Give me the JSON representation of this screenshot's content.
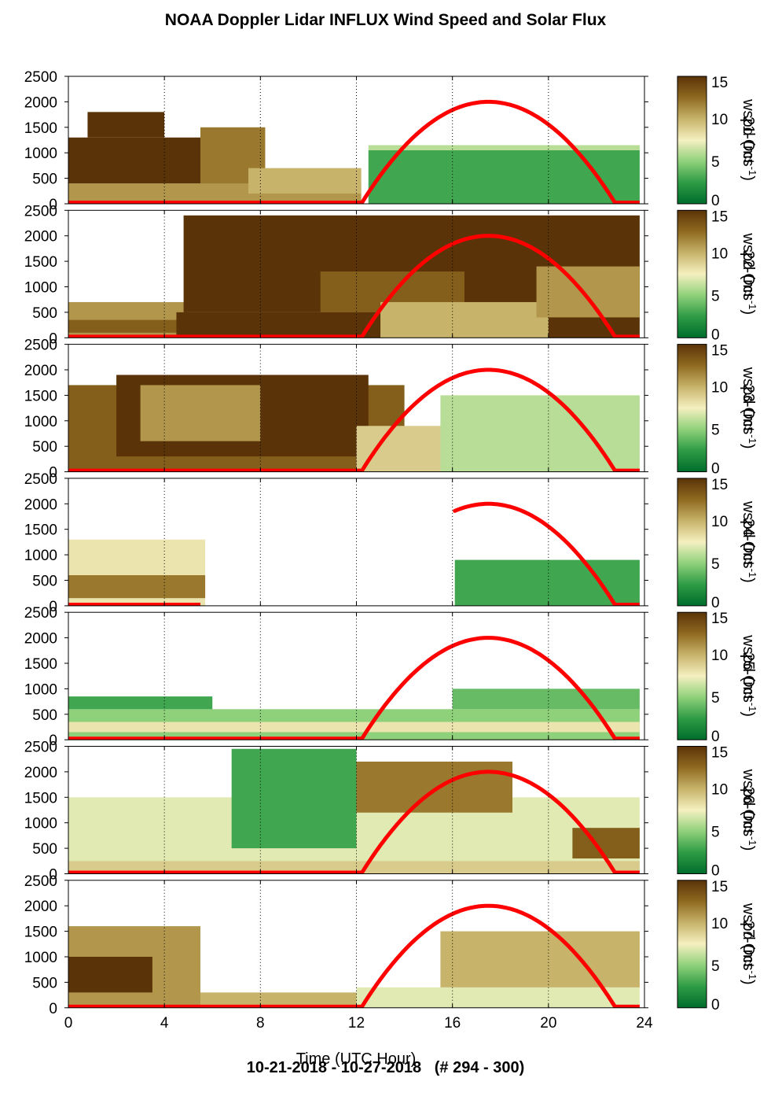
{
  "title": "NOAA Doppler Lidar INFLUX Wind Speed and Solar Flux",
  "footer": "10-21-2018 - 10-27-2018   (# 294 - 300)",
  "chart_data": {
    "type": "heatmap",
    "xlabel": "Time (UTC Hour)",
    "xlim": [
      0,
      24
    ],
    "x_ticks": [
      "0",
      "4",
      "8",
      "12",
      "16",
      "20",
      "24"
    ],
    "ylim": [
      0,
      2500
    ],
    "y_ticks": [
      "0",
      "500",
      "1000",
      "1500",
      "2000",
      "2500"
    ],
    "colorbar": {
      "label": "wspd (ms",
      "label_sup": "-1",
      "range": [
        0,
        15
      ],
      "ticks": [
        "0",
        "5",
        "10",
        "15"
      ],
      "colors": [
        "#006d2c",
        "#2e9b45",
        "#8fd17a",
        "#f5f0c0",
        "#c7b36a",
        "#8f6a20",
        "#5a3308"
      ]
    },
    "solar_flux_color": "#ff0000",
    "panels": [
      {
        "date_label": "21-Oct",
        "solar": {
          "start": 12.2,
          "end": 22.8,
          "peak": 2000
        },
        "blocks": [
          {
            "t0": 0,
            "t1": 12.2,
            "h0": 0,
            "h1": 400,
            "ws": 11
          },
          {
            "t0": 0,
            "t1": 7.5,
            "h0": 400,
            "h1": 1300,
            "ws": 15
          },
          {
            "t0": 0.8,
            "t1": 4.0,
            "h0": 1300,
            "h1": 1800,
            "ws": 15
          },
          {
            "t0": 5.5,
            "t1": 8.2,
            "h0": 400,
            "h1": 1500,
            "ws": 12
          },
          {
            "t0": 7.5,
            "t1": 12.2,
            "h0": 200,
            "h1": 700,
            "ws": 10
          },
          {
            "t0": 12.5,
            "t1": 23.8,
            "h0": 0,
            "h1": 1050,
            "ws": 3
          },
          {
            "t0": 12.5,
            "t1": 23.8,
            "h0": 1050,
            "h1": 1150,
            "ws": 6
          }
        ]
      },
      {
        "date_label": "22-Oct",
        "solar": {
          "start": 12.2,
          "end": 22.8,
          "peak": 2000
        },
        "blocks": [
          {
            "t0": 0,
            "t1": 5.0,
            "h0": 0,
            "h1": 700,
            "ws": 11
          },
          {
            "t0": 0,
            "t1": 5.0,
            "h0": 100,
            "h1": 350,
            "ws": 13
          },
          {
            "t0": 4.5,
            "t1": 23.8,
            "h0": 0,
            "h1": 500,
            "ws": 15
          },
          {
            "t0": 4.8,
            "t1": 23.8,
            "h0": 500,
            "h1": 2400,
            "ws": 15
          },
          {
            "t0": 10.5,
            "t1": 16.5,
            "h0": 500,
            "h1": 1300,
            "ws": 13
          },
          {
            "t0": 13.0,
            "t1": 20.0,
            "h0": 0,
            "h1": 700,
            "ws": 10
          },
          {
            "t0": 19.5,
            "t1": 23.8,
            "h0": 400,
            "h1": 1400,
            "ws": 11
          }
        ]
      },
      {
        "date_label": "23-Oct",
        "solar": {
          "start": 12.2,
          "end": 22.8,
          "peak": 2000
        },
        "blocks": [
          {
            "t0": 0,
            "t1": 14.0,
            "h0": 0,
            "h1": 1700,
            "ws": 13
          },
          {
            "t0": 2.0,
            "t1": 12.5,
            "h0": 300,
            "h1": 1900,
            "ws": 15
          },
          {
            "t0": 3.0,
            "t1": 8.0,
            "h0": 600,
            "h1": 1700,
            "ws": 11
          },
          {
            "t0": 12.0,
            "t1": 16.0,
            "h0": 0,
            "h1": 900,
            "ws": 9
          },
          {
            "t0": 15.5,
            "t1": 23.8,
            "h0": 0,
            "h1": 1500,
            "ws": 6
          }
        ]
      },
      {
        "date_label": "24-Oct",
        "solar": {
          "start": 16.1,
          "end": 22.8,
          "peak": 2000
        },
        "blocks": [
          {
            "t0": 0,
            "t1": 5.7,
            "h0": 0,
            "h1": 1300,
            "ws": 8
          },
          {
            "t0": 0,
            "t1": 5.7,
            "h0": 150,
            "h1": 600,
            "ws": 12
          },
          {
            "t0": 16.1,
            "t1": 23.8,
            "h0": 0,
            "h1": 900,
            "ws": 3
          }
        ]
      },
      {
        "date_label": "25-Oct",
        "solar": {
          "start": 12.2,
          "end": 22.8,
          "peak": 2000
        },
        "blocks": [
          {
            "t0": 0,
            "t1": 23.8,
            "h0": 0,
            "h1": 600,
            "ws": 5
          },
          {
            "t0": 0,
            "t1": 6.0,
            "h0": 600,
            "h1": 850,
            "ws": 3
          },
          {
            "t0": 0,
            "t1": 23.8,
            "h0": 150,
            "h1": 350,
            "ws": 8
          },
          {
            "t0": 16.0,
            "t1": 23.8,
            "h0": 600,
            "h1": 1000,
            "ws": 4
          }
        ]
      },
      {
        "date_label": "26-Oct",
        "solar": {
          "start": 12.2,
          "end": 22.8,
          "peak": 2000
        },
        "blocks": [
          {
            "t0": 0,
            "t1": 23.8,
            "h0": 0,
            "h1": 1500,
            "ws": 7
          },
          {
            "t0": 6.8,
            "t1": 12.0,
            "h0": 500,
            "h1": 2450,
            "ws": 3
          },
          {
            "t0": 12.0,
            "t1": 18.5,
            "h0": 1200,
            "h1": 2200,
            "ws": 12
          },
          {
            "t0": 21.0,
            "t1": 23.8,
            "h0": 300,
            "h1": 900,
            "ws": 13
          },
          {
            "t0": 0,
            "t1": 23.8,
            "h0": 0,
            "h1": 250,
            "ws": 9
          }
        ]
      },
      {
        "date_label": "27-Oct",
        "solar": {
          "start": 12.2,
          "end": 22.8,
          "peak": 2000
        },
        "blocks": [
          {
            "t0": 0,
            "t1": 5.5,
            "h0": 0,
            "h1": 1600,
            "ws": 11
          },
          {
            "t0": 0,
            "t1": 3.5,
            "h0": 300,
            "h1": 1000,
            "ws": 15
          },
          {
            "t0": 5.5,
            "t1": 12.0,
            "h0": 0,
            "h1": 300,
            "ws": 10
          },
          {
            "t0": 12.0,
            "t1": 23.8,
            "h0": 0,
            "h1": 400,
            "ws": 7
          },
          {
            "t0": 15.5,
            "t1": 23.8,
            "h0": 400,
            "h1": 1500,
            "ws": 10
          }
        ]
      }
    ]
  }
}
